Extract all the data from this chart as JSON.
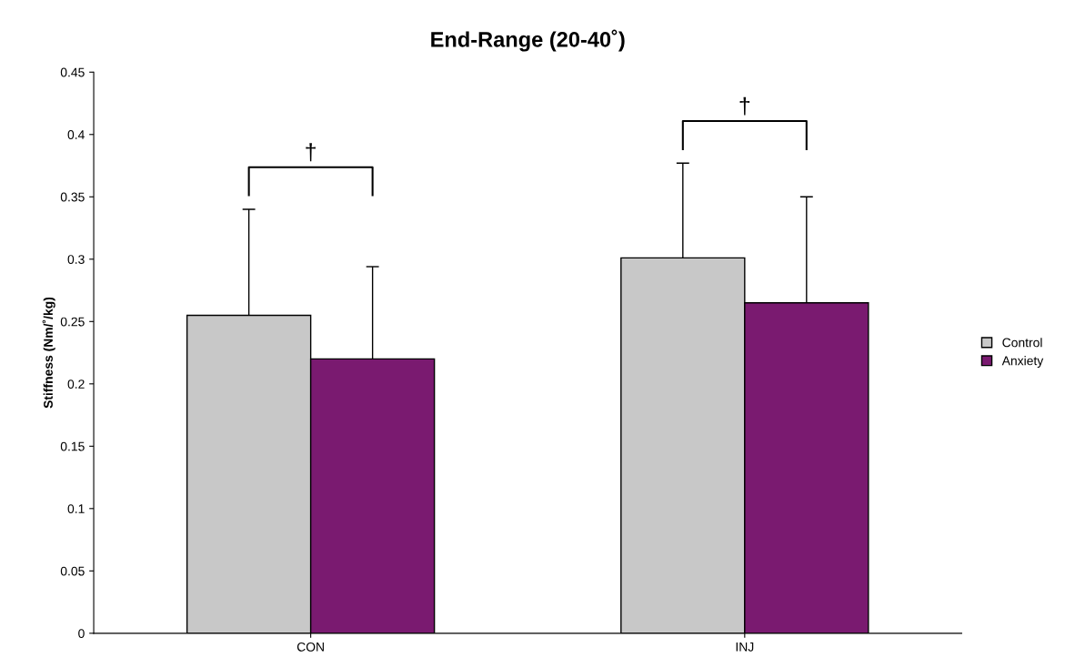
{
  "chart_data": {
    "type": "bar",
    "title": "End-Range (20-40˚)",
    "ylabel": "Stiffness (Nm/˚/kg)",
    "categories": [
      "CON",
      "INJ"
    ],
    "series": [
      {
        "name": "Control",
        "color": "#c8c8c8",
        "values": [
          0.255,
          0.301
        ],
        "errors": [
          0.085,
          0.076
        ]
      },
      {
        "name": "Anxiety",
        "color": "#7a1a70",
        "values": [
          0.22,
          0.265
        ],
        "errors": [
          0.074,
          0.085
        ]
      }
    ],
    "ylim": [
      0,
      0.45
    ],
    "yticks": [
      0,
      0.05,
      0.1,
      0.15,
      0.2,
      0.25,
      0.3,
      0.35,
      0.4,
      0.45
    ],
    "annotations": [
      "†",
      "†"
    ],
    "grid": false,
    "legend": "right"
  }
}
